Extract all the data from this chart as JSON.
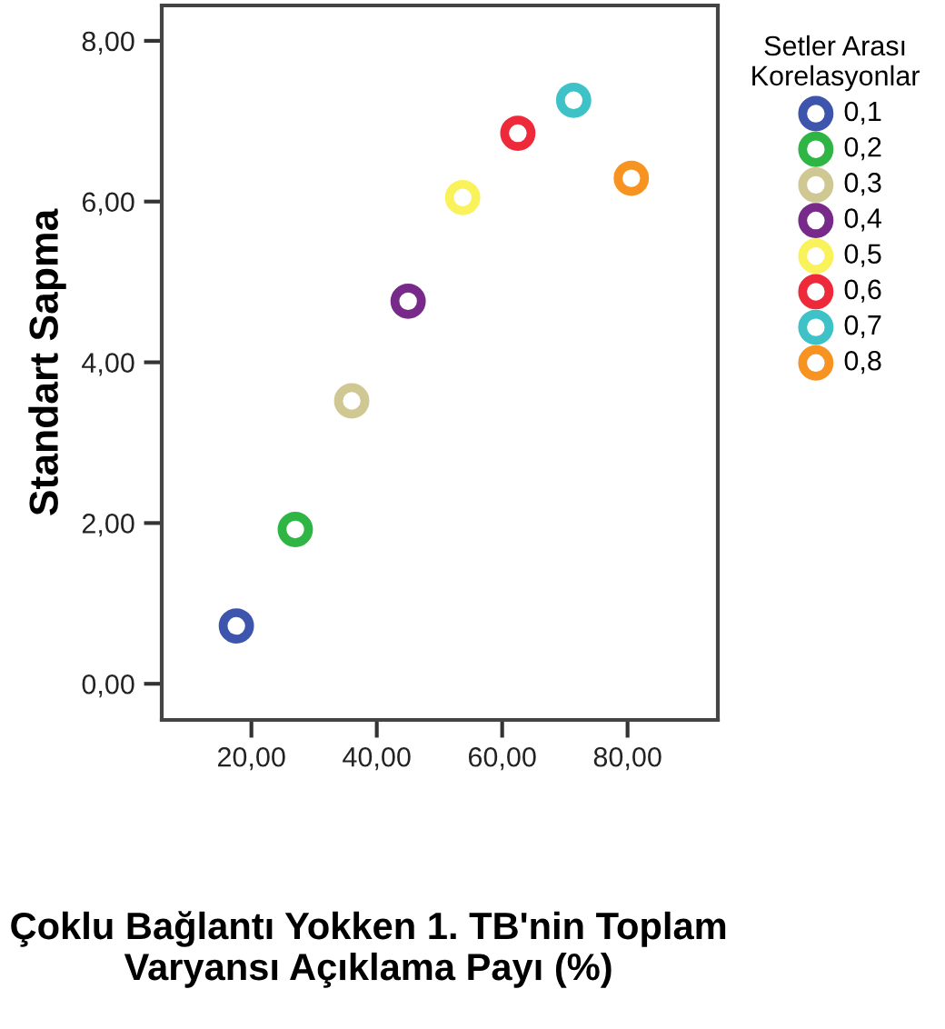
{
  "chart_data": {
    "type": "scatter",
    "xlabel": "Çoklu Bağlantı Yokken 1. TB'nin Toplam Varyansı Açıklama Payı (%)",
    "ylabel": "Standart Sapma",
    "legend_title": "Setler Arası\nKorelasyonlar",
    "xlim": [
      5.7,
      94.4
    ],
    "ylim": [
      -0.45,
      8.44
    ],
    "xticks": [
      {
        "value": 20,
        "label": "20,00"
      },
      {
        "value": 40,
        "label": "40,00"
      },
      {
        "value": 60,
        "label": "60,00"
      },
      {
        "value": 80,
        "label": "80,00"
      }
    ],
    "yticks": [
      {
        "value": 0,
        "label": "0,00"
      },
      {
        "value": 2,
        "label": "2,00"
      },
      {
        "value": 4,
        "label": "4,00"
      },
      {
        "value": 6,
        "label": "6,00"
      },
      {
        "value": 8,
        "label": "8,00"
      }
    ],
    "grid": false,
    "legend": "right",
    "marker": "circle",
    "series": [
      {
        "name": "0,1",
        "color": "#3e55ad",
        "x": [
          17.6
        ],
        "values": [
          0.72
        ]
      },
      {
        "name": "0,2",
        "color": "#2fb544",
        "x": [
          27.0
        ],
        "values": [
          1.92
        ]
      },
      {
        "name": "0,3",
        "color": "#cfc893",
        "x": [
          36.0
        ],
        "values": [
          3.52
        ]
      },
      {
        "name": "0,4",
        "color": "#772a8a",
        "x": [
          45.0
        ],
        "values": [
          4.76
        ]
      },
      {
        "name": "0,5",
        "color": "#f9f25a",
        "x": [
          53.7
        ],
        "values": [
          6.05
        ]
      },
      {
        "name": "0,6",
        "color": "#ee2a3a",
        "x": [
          62.5
        ],
        "values": [
          6.85
        ]
      },
      {
        "name": "0,7",
        "color": "#3dc2c8",
        "x": [
          71.4
        ],
        "values": [
          7.26
        ]
      },
      {
        "name": "0,8",
        "color": "#f79321",
        "x": [
          80.6
        ],
        "values": [
          6.29
        ]
      }
    ]
  }
}
